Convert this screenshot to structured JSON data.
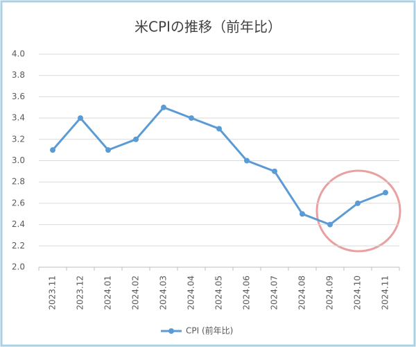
{
  "chart_data": {
    "type": "line",
    "title": "米CPIの推移（前年比）",
    "categories": [
      "2023.11",
      "2023.12",
      "2024.01",
      "2024.02",
      "2024.03",
      "2024.04",
      "2024.05",
      "2024.06",
      "2024.07",
      "2024.08",
      "2024.09",
      "2024.10",
      "2024.11"
    ],
    "series": [
      {
        "name": "CPI (前年比)",
        "color": "#5b9bd5",
        "values": [
          3.1,
          3.4,
          3.1,
          3.2,
          3.5,
          3.4,
          3.3,
          3.0,
          2.9,
          2.5,
          2.4,
          2.6,
          2.7
        ]
      }
    ],
    "ylim": [
      2.0,
      4.0
    ],
    "yticks": [
      {
        "value": 2,
        "label": "2.0"
      },
      2.2,
      2.4,
      2.6,
      2.8,
      {
        "value": 3,
        "label": "3.0"
      },
      3.2,
      3.4,
      3.6,
      3.8,
      {
        "value": 4,
        "label": "4.0"
      }
    ],
    "grid": true,
    "legend": "bottom"
  }
}
